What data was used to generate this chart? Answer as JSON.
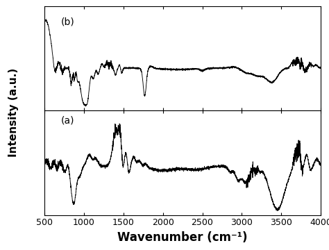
{
  "xlabel": "Wavenumber (cm⁻¹)",
  "ylabel": "Intensity (a.u.)",
  "xlim": [
    500,
    4000
  ],
  "label_a": "(a)",
  "label_b": "(b)",
  "xlabel_fontsize": 12,
  "ylabel_fontsize": 11,
  "tick_fontsize": 9,
  "line_color": "#000000",
  "line_width": 0.65,
  "background_color": "#ffffff"
}
